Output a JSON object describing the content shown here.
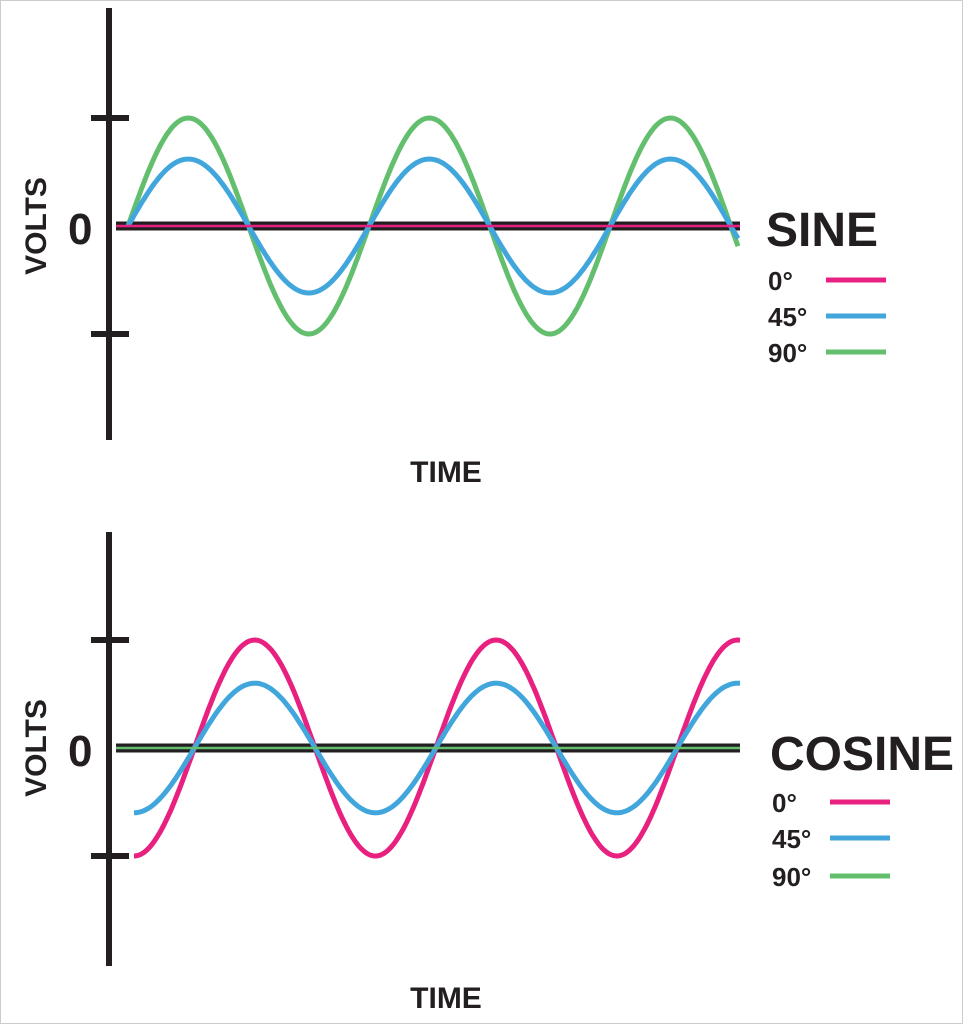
{
  "chart_data": [
    {
      "type": "line",
      "title": "SINE",
      "xlabel": "TIME",
      "ylabel": "VOLTS",
      "zero_label": "0",
      "x_unit": "cycles",
      "xlim": [
        0,
        2.53
      ],
      "ylim": [
        -2,
        2
      ],
      "y_ticks": [
        -1,
        1
      ],
      "function": "sin",
      "series": [
        {
          "name": "0°",
          "color": "#e8207f",
          "amplitude": 0
        },
        {
          "name": "45°",
          "color": "#41a6dc",
          "amplitude": 0.62
        },
        {
          "name": "90°",
          "color": "#63bf6e",
          "amplitude": 1.0
        }
      ]
    },
    {
      "type": "line",
      "title": "COSINE",
      "xlabel": "TIME",
      "ylabel": "VOLTS",
      "zero_label": "0",
      "x_unit": "cycles",
      "xlim": [
        0,
        2.51
      ],
      "ylim": [
        -2,
        2
      ],
      "y_ticks": [
        -1,
        1
      ],
      "function": "negcos",
      "series": [
        {
          "name": "0°",
          "color": "#e8207f",
          "amplitude": 1.0
        },
        {
          "name": "45°",
          "color": "#41a6dc",
          "amplitude": 0.6
        },
        {
          "name": "90°",
          "color": "#63bf6e",
          "amplitude": 0
        }
      ]
    }
  ]
}
